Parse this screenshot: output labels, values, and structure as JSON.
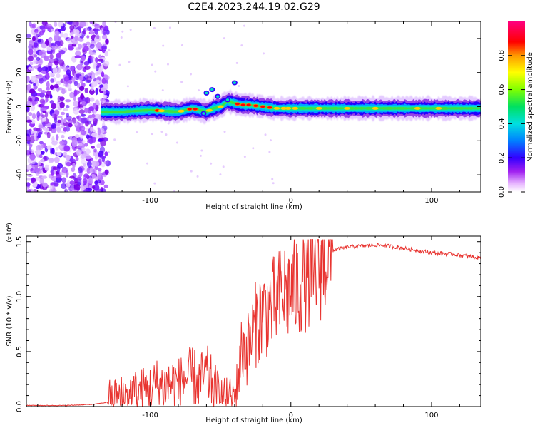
{
  "title": "C2E4.2023.244.19.02.G29",
  "colors": {
    "snr_line": "#e8332f",
    "spectro_low": "#cc66ff",
    "spectro_mid": "#00e0e0",
    "spectro_high": "#ff0000"
  },
  "colorbar": {
    "label": "Normalized spectral amplitude",
    "ticks": [
      "0.0",
      "0.2",
      "0.4",
      "0.6",
      "0.8"
    ],
    "range": [
      0,
      1
    ]
  },
  "chart_data": [
    {
      "type": "heatmap",
      "name": "spectrogram",
      "xlabel": "Height of straight line (km)",
      "ylabel": "Frequency (Hz)",
      "xlim": [
        -188,
        135
      ],
      "ylim": [
        -50,
        50
      ],
      "xticks": [
        "-100",
        "0",
        "100"
      ],
      "yticks": [
        "-40",
        "-20",
        "0",
        "20",
        "40"
      ],
      "ridge": {
        "x": [
          -135,
          -120,
          -100,
          -80,
          -70,
          -60,
          -55,
          -50,
          -45,
          -40,
          -35,
          -30,
          -20,
          -10,
          0,
          20,
          50,
          100,
          135
        ],
        "frequency": [
          -3,
          -3,
          -2,
          -3,
          -1,
          -3,
          -1,
          0,
          3,
          2,
          1,
          1,
          0,
          -1,
          -1,
          -1,
          -1,
          -1,
          -1
        ]
      }
    },
    {
      "type": "line",
      "name": "snr",
      "xlabel": "Height of straight line (km)",
      "ylabel": "SNR (10 * v/v)",
      "y_multiplier": "(x10⁴)",
      "xlim": [
        -188,
        135
      ],
      "ylim": [
        0,
        1.55
      ],
      "xticks": [
        "-100",
        "0",
        "100"
      ],
      "yticks": [
        "0.0",
        "0.5",
        "1.0",
        "1.5"
      ],
      "series": [
        {
          "x": [
            -188,
            -160,
            -140,
            -130,
            -120,
            -110,
            -100,
            -95,
            -90,
            -85,
            -80,
            -75,
            -70,
            -65,
            -60,
            -55,
            -50,
            -45,
            -40,
            -38,
            -36,
            -34,
            -32,
            -30,
            -25,
            -20,
            -15,
            -10,
            -5,
            0,
            5,
            10,
            15,
            20,
            25,
            30,
            40,
            50,
            60,
            70,
            80,
            90,
            100,
            110,
            120,
            135
          ],
          "y": [
            0.01,
            0.01,
            0.02,
            0.04,
            0.08,
            0.12,
            0.15,
            0.2,
            0.18,
            0.22,
            0.2,
            0.25,
            0.28,
            0.22,
            0.3,
            0.18,
            0.08,
            0.05,
            0.08,
            0.2,
            0.45,
            0.55,
            0.5,
            0.55,
            0.75,
            0.85,
            0.9,
            0.95,
            1.05,
            1.05,
            1.1,
            1.2,
            1.15,
            1.3,
            1.38,
            1.42,
            1.45,
            1.46,
            1.47,
            1.46,
            1.44,
            1.42,
            1.4,
            1.39,
            1.38,
            1.35
          ]
        }
      ]
    }
  ]
}
